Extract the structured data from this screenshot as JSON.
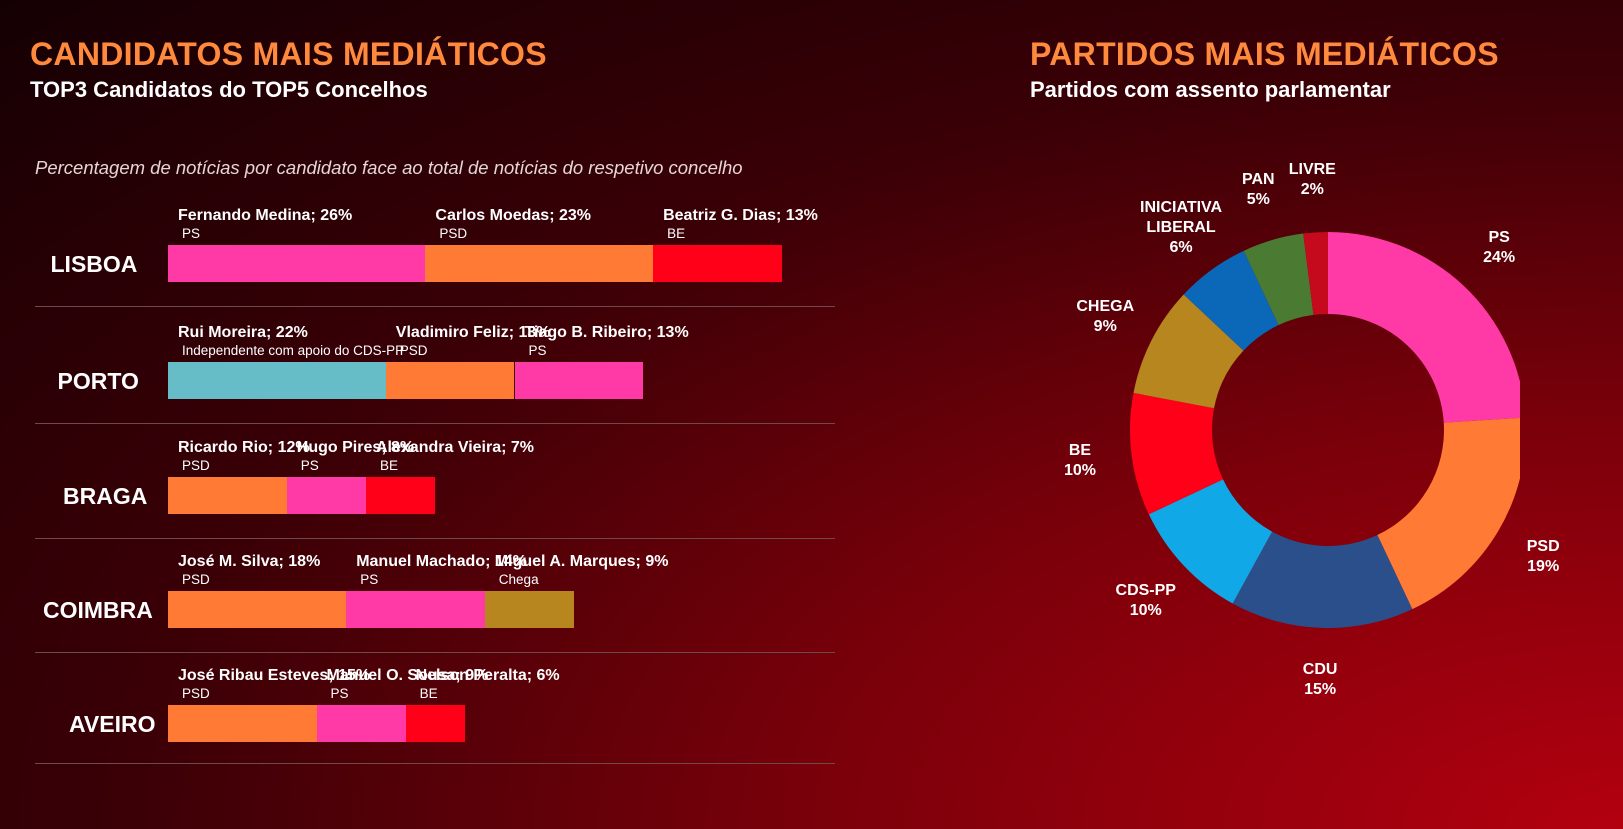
{
  "left_panel": {
    "title": "CANDIDATOS MAIS MEDIÁTICOS",
    "subtitle": "TOP3 Candidatos do TOP5 Concelhos",
    "note": "Percentagem de notícias por candidato face ao total de notícias do respetivo concelho"
  },
  "right_panel": {
    "title": "PARTIDOS MAIS MEDIÁTICOS",
    "subtitle": "Partidos com assento parlamentar"
  },
  "chart_data": [
    {
      "type": "bar",
      "stacked": true,
      "orientation": "horizontal",
      "rows": [
        {
          "city": "LISBOA",
          "segments": [
            {
              "label": "Fernando Medina; 26%",
              "party": "PS",
              "value": 26,
              "color": "#ff3aa6"
            },
            {
              "label": "Carlos Moedas; 23%",
              "party": "PSD",
              "value": 23,
              "color": "#ff7b35"
            },
            {
              "label": "Beatriz G. Dias; 13%",
              "party": "BE",
              "value": 13,
              "color": "#ff0018"
            }
          ]
        },
        {
          "city": "PORTO",
          "segments": [
            {
              "label": "Rui Moreira; 22%",
              "party": "Independente com apoio do CDS-PP",
              "value": 22,
              "color": "#66bcc7"
            },
            {
              "label": "Vladimiro Feliz; 13%",
              "party": "PSD",
              "value": 13,
              "color": "#ff7b35"
            },
            {
              "label": "Tiago B. Ribeiro; 13%",
              "party": "PS",
              "value": 13,
              "color": "#ff3aa6"
            }
          ]
        },
        {
          "city": "BRAGA",
          "segments": [
            {
              "label": "Ricardo Rio; 12%",
              "party": "PSD",
              "value": 12,
              "color": "#ff7b35"
            },
            {
              "label": "Hugo Pires; 8%",
              "party": "PS",
              "value": 8,
              "color": "#ff3aa6"
            },
            {
              "label": "Alexandra Vieira; 7%",
              "party": "BE",
              "value": 7,
              "color": "#ff0018"
            }
          ]
        },
        {
          "city": "COIMBRA",
          "segments": [
            {
              "label": "José M. Silva; 18%",
              "party": "PSD",
              "value": 18,
              "color": "#ff7b35"
            },
            {
              "label": "Manuel Machado; 14%",
              "party": "PS",
              "value": 14,
              "color": "#ff3aa6"
            },
            {
              "label": "Miguel A. Marques; 9%",
              "party": "Chega",
              "value": 9,
              "color": "#b7861f"
            }
          ]
        },
        {
          "city": "AVEIRO",
          "segments": [
            {
              "label": "José Ribau Esteves; 15%",
              "party": "PSD",
              "value": 15,
              "color": "#ff7b35"
            },
            {
              "label": "Manuel O. Sousa; 9%",
              "party": "PS",
              "value": 9,
              "color": "#ff3aa6"
            },
            {
              "label": "Nelson Peralta; 6%",
              "party": "BE",
              "value": 6,
              "color": "#ff0018"
            }
          ]
        }
      ]
    },
    {
      "type": "pie",
      "donut": true,
      "slices": [
        {
          "label": "PS",
          "value": 24,
          "display": "24%",
          "color": "#ff3aa6"
        },
        {
          "label": "PSD",
          "value": 19,
          "display": "19%",
          "color": "#ff7b35"
        },
        {
          "label": "CDU",
          "value": 15,
          "display": "15%",
          "color": "#2b4f8a"
        },
        {
          "label": "CDS-PP",
          "value": 10,
          "display": "10%",
          "color": "#11a8e8"
        },
        {
          "label": "BE",
          "value": 10,
          "display": "10%",
          "color": "#ff0018"
        },
        {
          "label": "CHEGA",
          "value": 9,
          "display": "9%",
          "color": "#b7861f"
        },
        {
          "label": "INICIATIVA LIBERAL",
          "value": 6,
          "display": "6%",
          "color": "#0b68b8"
        },
        {
          "label": "PAN",
          "value": 5,
          "display": "5%",
          "color": "#4b7b32"
        },
        {
          "label": "LIVRE",
          "value": 2,
          "display": "2%",
          "color": "#c40a1c"
        }
      ]
    }
  ]
}
